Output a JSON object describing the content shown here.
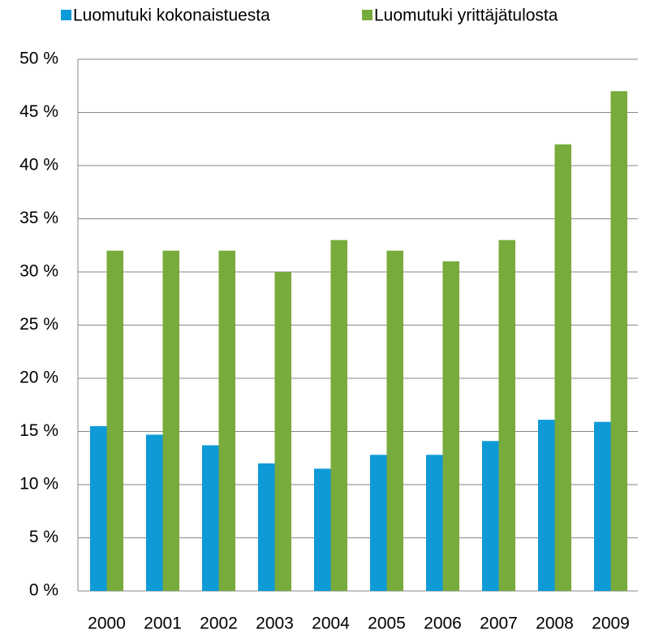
{
  "chart_data": {
    "type": "bar",
    "categories": [
      "2000",
      "2001",
      "2002",
      "2003",
      "2004",
      "2005",
      "2006",
      "2007",
      "2008",
      "2009"
    ],
    "series": [
      {
        "name": "Luomutuki kokonaistuesta",
        "color": "#0e9ad7",
        "values": [
          15.5,
          14.7,
          13.7,
          12.0,
          11.5,
          12.8,
          12.8,
          14.1,
          16.1,
          15.9
        ]
      },
      {
        "name": "Luomutuki yrittäjätulosta",
        "color": "#77ab3c",
        "values": [
          32,
          32,
          32,
          30,
          33,
          32,
          31,
          33,
          42,
          47
        ]
      }
    ],
    "ylim": [
      0,
      50
    ],
    "yticks": [
      {
        "value": 0,
        "label": "0 %"
      },
      {
        "value": 5,
        "label": "5 %"
      },
      {
        "value": 10,
        "label": "10 %"
      },
      {
        "value": 15,
        "label": "15 %"
      },
      {
        "value": 20,
        "label": "20 %"
      },
      {
        "value": 25,
        "label": "25 %"
      },
      {
        "value": 30,
        "label": "30 %"
      },
      {
        "value": 35,
        "label": "35 %"
      },
      {
        "value": 40,
        "label": "40 %"
      },
      {
        "value": 45,
        "label": "45 %"
      },
      {
        "value": 50,
        "label": "50 %"
      }
    ],
    "grid": true
  }
}
